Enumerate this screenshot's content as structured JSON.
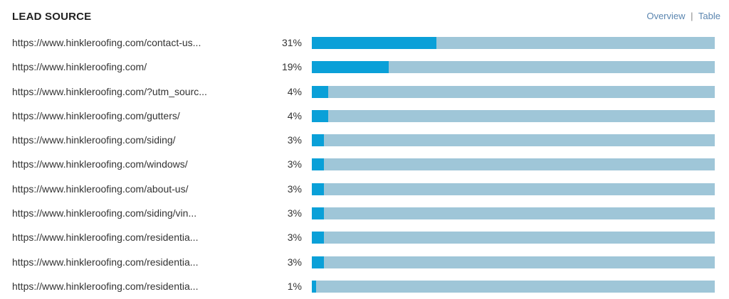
{
  "header": {
    "title": "LEAD SOURCE",
    "overview_label": "Overview",
    "separator": "|",
    "table_label": "Table"
  },
  "colors": {
    "bar_fill": "#0aa0d8",
    "bar_track": "#9fc6d8",
    "link": "#5b86b0"
  },
  "rows": [
    {
      "label": "https://www.hinkleroofing.com/contact-us...",
      "percent_text": "31%",
      "value": 31
    },
    {
      "label": "https://www.hinkleroofing.com/",
      "percent_text": "19%",
      "value": 19
    },
    {
      "label": "https://www.hinkleroofing.com/?utm_sourc...",
      "percent_text": "4%",
      "value": 4
    },
    {
      "label": "https://www.hinkleroofing.com/gutters/",
      "percent_text": "4%",
      "value": 4
    },
    {
      "label": "https://www.hinkleroofing.com/siding/",
      "percent_text": "3%",
      "value": 3
    },
    {
      "label": "https://www.hinkleroofing.com/windows/",
      "percent_text": "3%",
      "value": 3
    },
    {
      "label": "https://www.hinkleroofing.com/about-us/",
      "percent_text": "3%",
      "value": 3
    },
    {
      "label": "https://www.hinkleroofing.com/siding/vin...",
      "percent_text": "3%",
      "value": 3
    },
    {
      "label": "https://www.hinkleroofing.com/residentia...",
      "percent_text": "3%",
      "value": 3
    },
    {
      "label": "https://www.hinkleroofing.com/residentia...",
      "percent_text": "3%",
      "value": 3
    },
    {
      "label": "https://www.hinkleroofing.com/residentia...",
      "percent_text": "1%",
      "value": 1
    }
  ]
}
